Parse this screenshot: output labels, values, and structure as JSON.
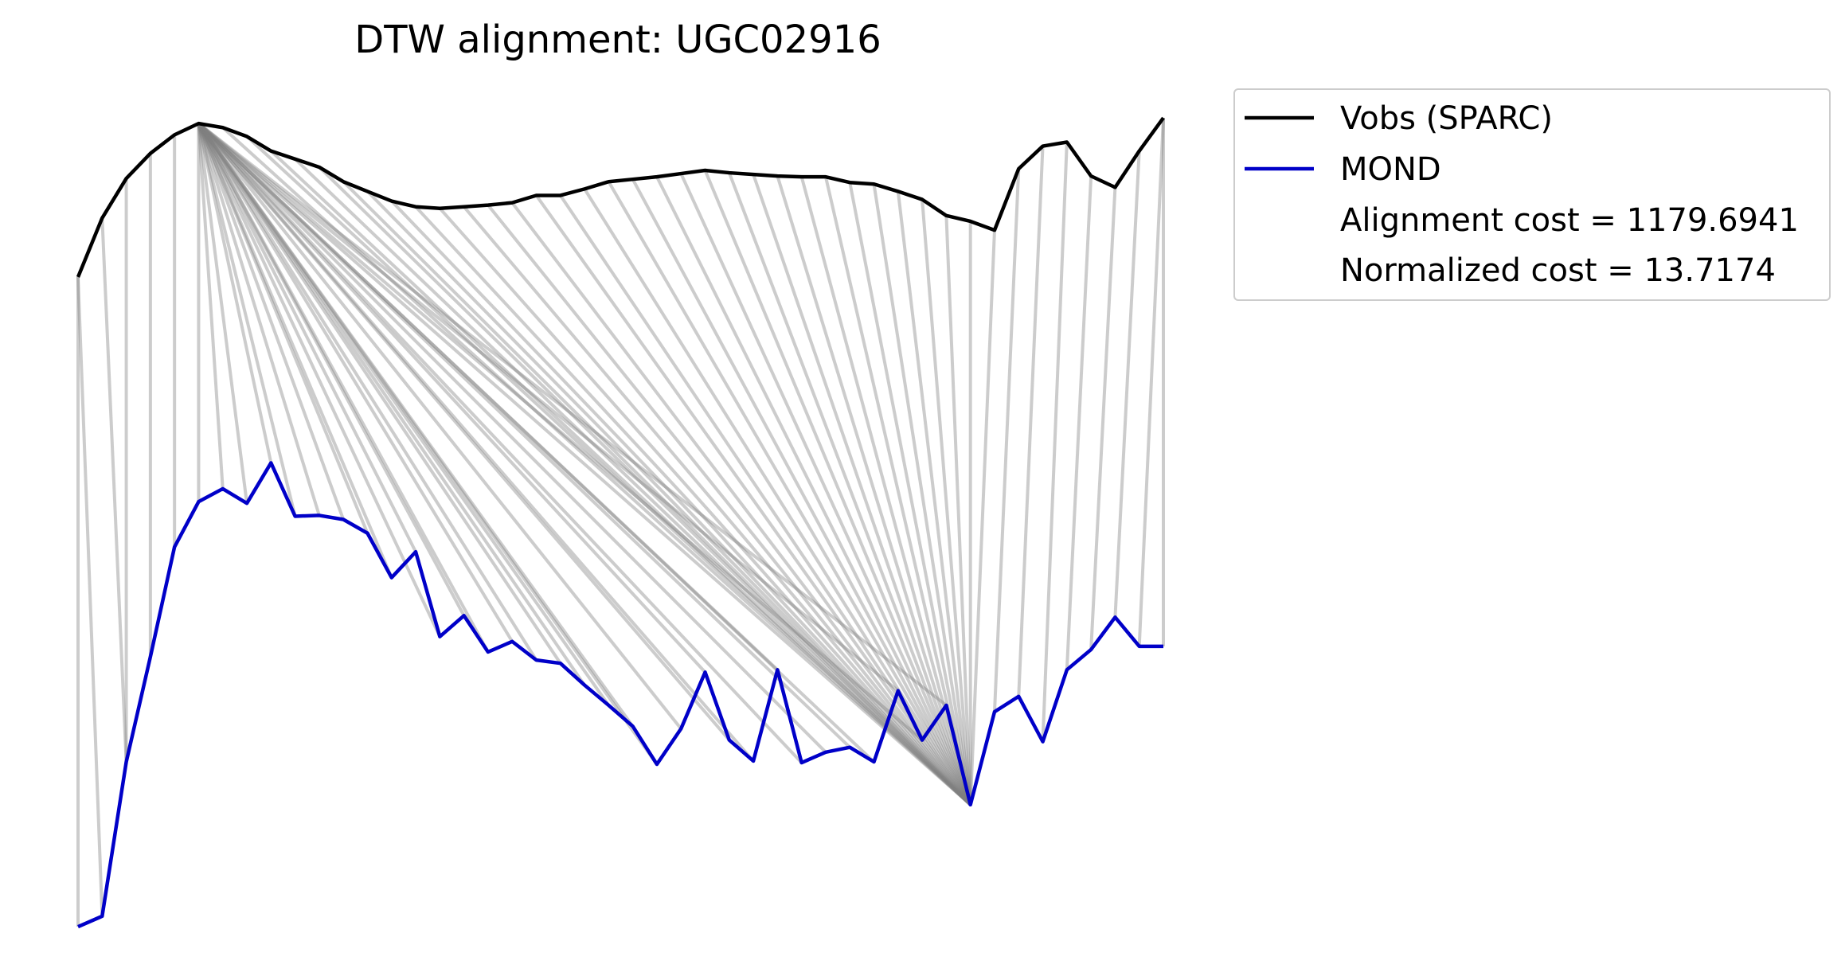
{
  "chart_data": {
    "type": "line",
    "title": "DTW alignment: UGC02916",
    "xlabel": "",
    "ylabel": "",
    "axes_visible": false,
    "grid": false,
    "legend_position": "top-right, outside plot",
    "ylim": [
      0,
      1.0
    ],
    "series": [
      {
        "name": "Vobs (SPARC)",
        "color": "#000000",
        "values": [
          0.8,
          0.873,
          0.922,
          0.953,
          0.976,
          0.99,
          0.985,
          0.974,
          0.956,
          0.946,
          0.936,
          0.918,
          0.906,
          0.894,
          0.887,
          0.885,
          0.887,
          0.889,
          0.892,
          0.901,
          0.901,
          0.909,
          0.918,
          0.921,
          0.924,
          0.928,
          0.932,
          0.929,
          0.927,
          0.925,
          0.924,
          0.924,
          0.917,
          0.915,
          0.906,
          0.896,
          0.876,
          0.869,
          0.858,
          0.934,
          0.962,
          0.967,
          0.925,
          0.911,
          0.956,
          0.997
        ]
      },
      {
        "name": "MOND",
        "color": "#0000c8",
        "values": [
          -0.004,
          0.009,
          0.2,
          0.33,
          0.466,
          0.522,
          0.538,
          0.52,
          0.57,
          0.504,
          0.505,
          0.5,
          0.483,
          0.428,
          0.46,
          0.355,
          0.381,
          0.336,
          0.349,
          0.326,
          0.322,
          0.295,
          0.27,
          0.244,
          0.197,
          0.241,
          0.311,
          0.227,
          0.201,
          0.314,
          0.199,
          0.212,
          0.218,
          0.2,
          0.288,
          0.227,
          0.27,
          0.147,
          0.262,
          0.281,
          0.225,
          0.314,
          0.339,
          0.379,
          0.343,
          0.343
        ]
      }
    ],
    "alignment_path": [
      [
        0,
        0
      ],
      [
        0,
        1
      ],
      [
        1,
        2
      ],
      [
        2,
        2
      ],
      [
        3,
        3
      ],
      [
        4,
        4
      ],
      [
        5,
        5
      ],
      [
        5,
        6
      ],
      [
        5,
        7
      ],
      [
        5,
        8
      ],
      [
        5,
        9
      ],
      [
        5,
        10
      ],
      [
        5,
        11
      ],
      [
        5,
        12
      ],
      [
        5,
        13
      ],
      [
        5,
        14
      ],
      [
        5,
        15
      ],
      [
        5,
        16
      ],
      [
        5,
        17
      ],
      [
        5,
        18
      ],
      [
        5,
        19
      ],
      [
        5,
        20
      ],
      [
        5,
        21
      ],
      [
        5,
        22
      ],
      [
        5,
        23
      ],
      [
        5,
        24
      ],
      [
        5,
        25
      ],
      [
        5,
        26
      ],
      [
        5,
        27
      ],
      [
        5,
        28
      ],
      [
        5,
        29
      ],
      [
        5,
        30
      ],
      [
        5,
        31
      ],
      [
        5,
        32
      ],
      [
        5,
        33
      ],
      [
        5,
        34
      ],
      [
        5,
        35
      ],
      [
        5,
        36
      ],
      [
        5,
        37
      ],
      [
        6,
        37
      ],
      [
        7,
        37
      ],
      [
        8,
        37
      ],
      [
        9,
        37
      ],
      [
        10,
        37
      ],
      [
        11,
        37
      ],
      [
        12,
        37
      ],
      [
        13,
        37
      ],
      [
        14,
        37
      ],
      [
        15,
        37
      ],
      [
        16,
        37
      ],
      [
        17,
        37
      ],
      [
        18,
        37
      ],
      [
        19,
        37
      ],
      [
        20,
        37
      ],
      [
        21,
        37
      ],
      [
        22,
        37
      ],
      [
        23,
        37
      ],
      [
        24,
        37
      ],
      [
        25,
        37
      ],
      [
        26,
        37
      ],
      [
        27,
        37
      ],
      [
        28,
        37
      ],
      [
        29,
        37
      ],
      [
        30,
        37
      ],
      [
        31,
        37
      ],
      [
        32,
        37
      ],
      [
        33,
        37
      ],
      [
        34,
        37
      ],
      [
        35,
        37
      ],
      [
        36,
        37
      ],
      [
        37,
        37
      ],
      [
        38,
        37
      ],
      [
        39,
        38
      ],
      [
        40,
        39
      ],
      [
        41,
        40
      ],
      [
        42,
        41
      ],
      [
        43,
        42
      ],
      [
        44,
        43
      ],
      [
        45,
        44
      ],
      [
        45,
        45
      ]
    ],
    "legend": {
      "entries": [
        "Vobs (SPARC)",
        "MOND"
      ],
      "annotations": [
        "Alignment cost = 1179.6941",
        "Normalized cost = 13.7174"
      ]
    }
  }
}
